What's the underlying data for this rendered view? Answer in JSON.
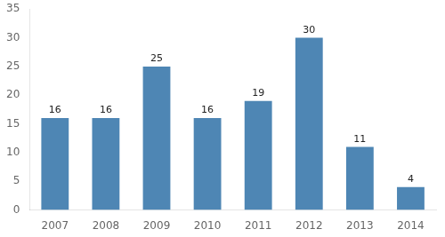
{
  "chart_data": {
    "type": "bar",
    "categories": [
      "2007",
      "2008",
      "2009",
      "2010",
      "2011",
      "2012",
      "2013",
      "2014"
    ],
    "values": [
      16,
      16,
      25,
      16,
      19,
      30,
      11,
      4
    ],
    "color": "#4e86b4",
    "ylim": [
      0,
      35
    ],
    "yticks": [
      0,
      5,
      10,
      15,
      20,
      25,
      30,
      35
    ],
    "grid": false,
    "data_labels": true
  }
}
